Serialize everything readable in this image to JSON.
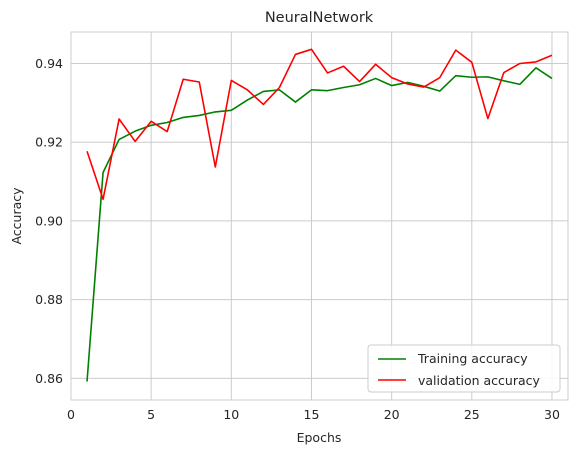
{
  "chart_data": {
    "type": "line",
    "title": "NeuralNetwork",
    "xlabel": "Epochs",
    "ylabel": "Accuracy",
    "xlim": [
      0,
      31
    ],
    "ylim": [
      0.8545,
      0.948
    ],
    "xticks": [
      0,
      5,
      10,
      15,
      20,
      25,
      30
    ],
    "yticks": [
      0.86,
      0.88,
      0.9,
      0.92,
      0.94
    ],
    "ytick_labels": [
      "0.86",
      "0.88",
      "0.90",
      "0.92",
      "0.94"
    ],
    "grid": true,
    "legend_position": "lower-right",
    "x": [
      1,
      2,
      3,
      4,
      5,
      6,
      7,
      8,
      9,
      10,
      11,
      12,
      13,
      14,
      15,
      16,
      17,
      18,
      19,
      20,
      21,
      22,
      23,
      24,
      25,
      26,
      27,
      28,
      29,
      30
    ],
    "series": [
      {
        "name": "Training accuracy",
        "color": "#008000",
        "values": [
          0.8592,
          0.9123,
          0.9207,
          0.9228,
          0.9243,
          0.925,
          0.9263,
          0.9268,
          0.9277,
          0.9281,
          0.9307,
          0.9329,
          0.9333,
          0.9302,
          0.9333,
          0.9331,
          0.9339,
          0.9346,
          0.9362,
          0.9344,
          0.9352,
          0.9342,
          0.933,
          0.9369,
          0.9365,
          0.9366,
          0.9356,
          0.9347,
          0.9389,
          0.9362
        ]
      },
      {
        "name": "validation accuracy",
        "color": "#ff0000",
        "values": [
          0.9177,
          0.9055,
          0.9259,
          0.9202,
          0.9253,
          0.9227,
          0.936,
          0.9353,
          0.9137,
          0.9357,
          0.9333,
          0.9296,
          0.9339,
          0.9423,
          0.9436,
          0.9376,
          0.9393,
          0.9354,
          0.9398,
          0.9364,
          0.9348,
          0.934,
          0.9364,
          0.9434,
          0.9403,
          0.926,
          0.9377,
          0.94,
          0.9404,
          0.9421
        ]
      }
    ]
  }
}
